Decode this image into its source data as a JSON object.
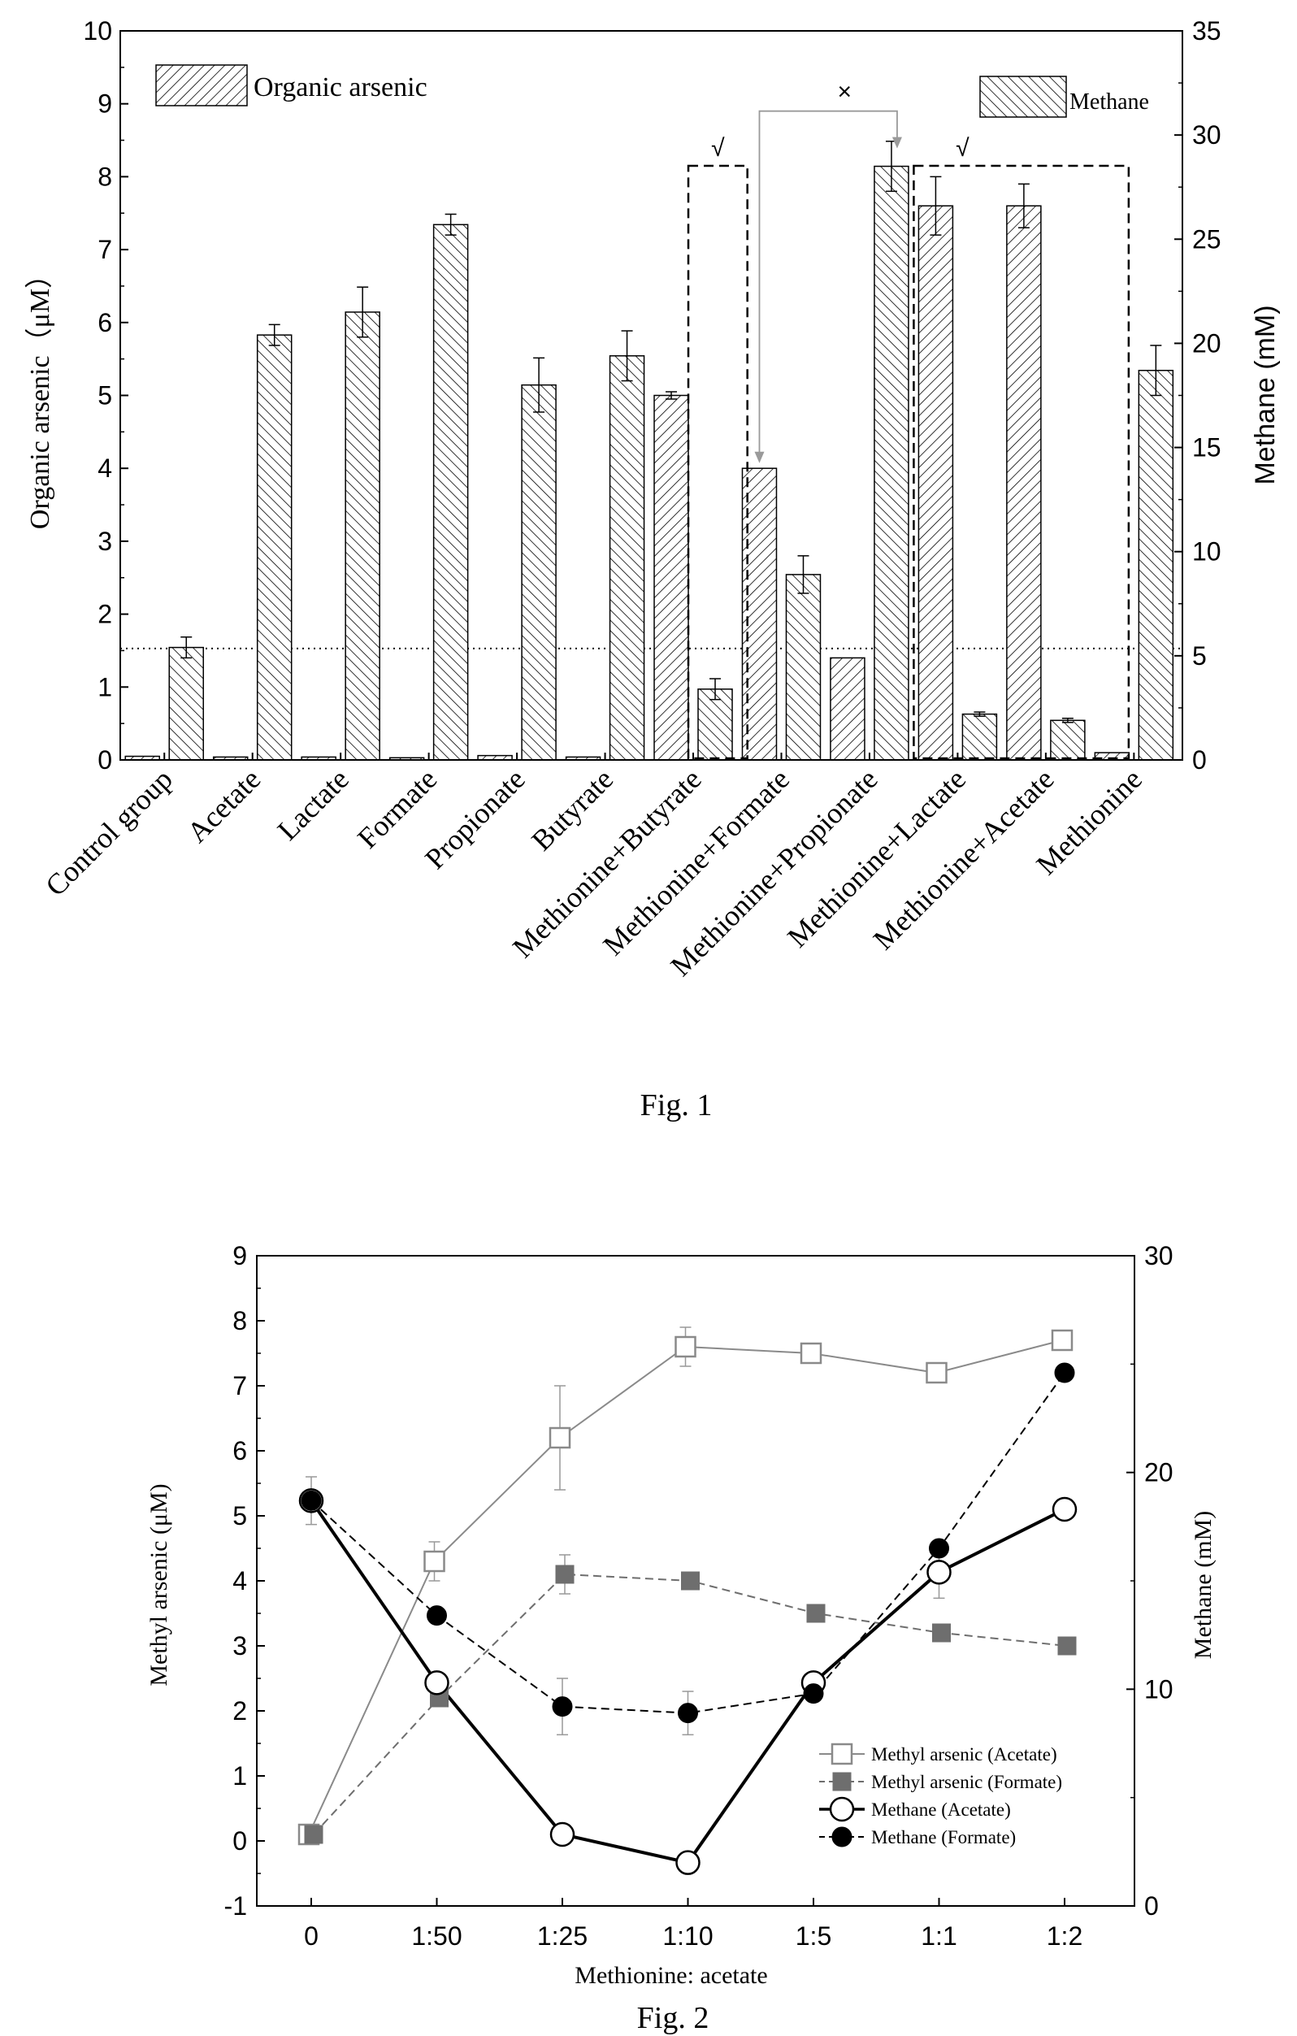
{
  "fig1": {
    "caption": "Fig. 1",
    "chart_data": {
      "type": "bar",
      "title": "",
      "categories": [
        "Control group",
        "Acetate",
        "Lactate",
        "Formate",
        "Propionate",
        "Butyrate",
        "Methionine+Butyrate",
        "Methionine+Formate",
        "Methionine+Propionate",
        "Methionine+Lactate",
        "Methionine+Acetate",
        "Methionine"
      ],
      "ylabel": "Organic arsenic（μM）",
      "y2label": "Methane (mM)",
      "ylim": [
        0,
        10
      ],
      "y2lim": [
        0,
        35
      ],
      "yticks": [
        0,
        1,
        2,
        3,
        4,
        5,
        6,
        7,
        8,
        9,
        10
      ],
      "y2ticks": [
        0,
        5,
        10,
        15,
        20,
        25,
        30,
        35
      ],
      "series": [
        {
          "name": "Organic arsenic",
          "axis": "left",
          "hatch": "forward",
          "values": [
            0.05,
            0.04,
            0.04,
            0.03,
            0.06,
            0.04,
            5.0,
            4.0,
            1.4,
            7.6,
            7.6,
            0.1
          ],
          "errors": [
            0,
            0,
            0,
            0,
            0,
            0,
            0.05,
            0,
            0,
            0.4,
            0.3,
            0
          ]
        },
        {
          "name": "Methane",
          "axis": "right",
          "hatch": "backward",
          "values": [
            5.4,
            20.4,
            21.5,
            25.7,
            18.0,
            19.4,
            3.4,
            8.9,
            28.5,
            2.2,
            1.9,
            18.7
          ],
          "errors": [
            0.5,
            0.5,
            1.2,
            0.5,
            1.3,
            1.2,
            0.5,
            0.9,
            1.2,
            0.1,
            0.1,
            1.2
          ]
        }
      ],
      "reference_line": {
        "axis": "right",
        "value": 5.35
      },
      "annotations": {
        "check_mark": "√",
        "cross_mark": "×"
      },
      "legend": "top (split: left and right)"
    }
  },
  "fig2": {
    "caption": "Fig. 2",
    "chart_data": {
      "type": "line",
      "title": "",
      "categories": [
        "0",
        "1:50",
        "1:25",
        "1:10",
        "1:5",
        "1:1",
        "1:2"
      ],
      "xlabel": "Methionine: acetate",
      "ylabel": "Methyl arsenic (μM)",
      "y2label": "Methane (mM)",
      "ylim": [
        -1,
        9
      ],
      "y2lim": [
        0,
        30
      ],
      "yticks": [
        -1,
        0,
        1,
        2,
        3,
        4,
        5,
        6,
        7,
        8,
        9
      ],
      "y2ticks": [
        0,
        10,
        20,
        30
      ],
      "series": [
        {
          "name": "Methyl arsenic (Acetate)",
          "axis": "left",
          "marker": "open-square",
          "color": "#8a8a8a",
          "dash": "solid",
          "values": [
            0.1,
            4.3,
            6.2,
            7.6,
            7.5,
            7.2,
            7.7
          ],
          "errors": [
            0,
            0.3,
            0.8,
            0.3,
            0,
            0,
            0
          ]
        },
        {
          "name": "Methyl arsenic (Formate)",
          "axis": "left",
          "marker": "filled-square",
          "color": "#6e6e6e",
          "dash": "dashed",
          "values": [
            0.1,
            2.2,
            4.1,
            4.0,
            3.5,
            3.2,
            3.0
          ],
          "errors": [
            0,
            0,
            0.3,
            0,
            0,
            0.1,
            0
          ]
        },
        {
          "name": "Methane (Acetate)",
          "axis": "right",
          "marker": "open-circle",
          "color": "#000000",
          "dash": "solid",
          "values": [
            18.7,
            10.3,
            3.3,
            2.0,
            10.3,
            15.4,
            18.3
          ],
          "errors": [
            0,
            0,
            0,
            0,
            0,
            1.2,
            0
          ]
        },
        {
          "name": "Methane (Formate)",
          "axis": "right",
          "marker": "filled-circle",
          "color": "#000000",
          "dash": "dashed",
          "values": [
            18.7,
            13.4,
            9.2,
            8.9,
            9.8,
            16.5,
            24.6
          ],
          "errors": [
            1.1,
            0,
            1.3,
            1.0,
            0,
            0,
            0
          ]
        }
      ],
      "legend": "bottom-right"
    }
  }
}
